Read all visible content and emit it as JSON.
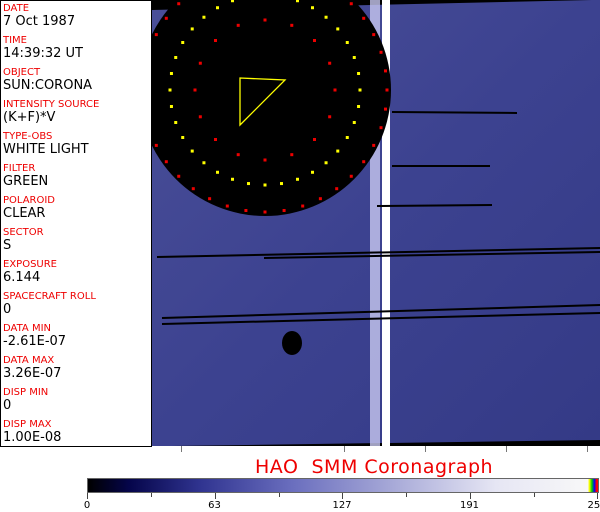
{
  "info": [
    {
      "label": "DATE",
      "value": "7 Oct 1987"
    },
    {
      "label": "TIME",
      "value": "14:39:32 UT"
    },
    {
      "label": "OBJECT",
      "value": "SUN:CORONA"
    },
    {
      "label": "INTENSITY SOURCE",
      "value": "(K+F)*V"
    },
    {
      "label": "TYPE-OBS",
      "value": "WHITE LIGHT"
    },
    {
      "label": "FILTER",
      "value": "GREEN"
    },
    {
      "label": "POLAROID",
      "value": "CLEAR"
    },
    {
      "label": "SECTOR",
      "value": "S"
    },
    {
      "label": "EXPOSURE",
      "value": "6.144"
    },
    {
      "label": "SPACECRAFT ROLL",
      "value": "0"
    },
    {
      "label": "DATA MIN",
      "value": "-2.61E-07"
    },
    {
      "label": "DATA MAX",
      "value": "3.26E-07"
    },
    {
      "label": "DISP MIN",
      "value": "0"
    },
    {
      "label": "DISP MAX",
      "value": "1.00E-08"
    }
  ],
  "title": "HAO  SMM Coronagraph",
  "colorbar": {
    "ticks": [
      "0",
      "63",
      "127",
      "191",
      "255"
    ],
    "colormap": [
      "#000000",
      "#303490",
      "#a8aad8",
      "#f8f8f8"
    ]
  }
}
